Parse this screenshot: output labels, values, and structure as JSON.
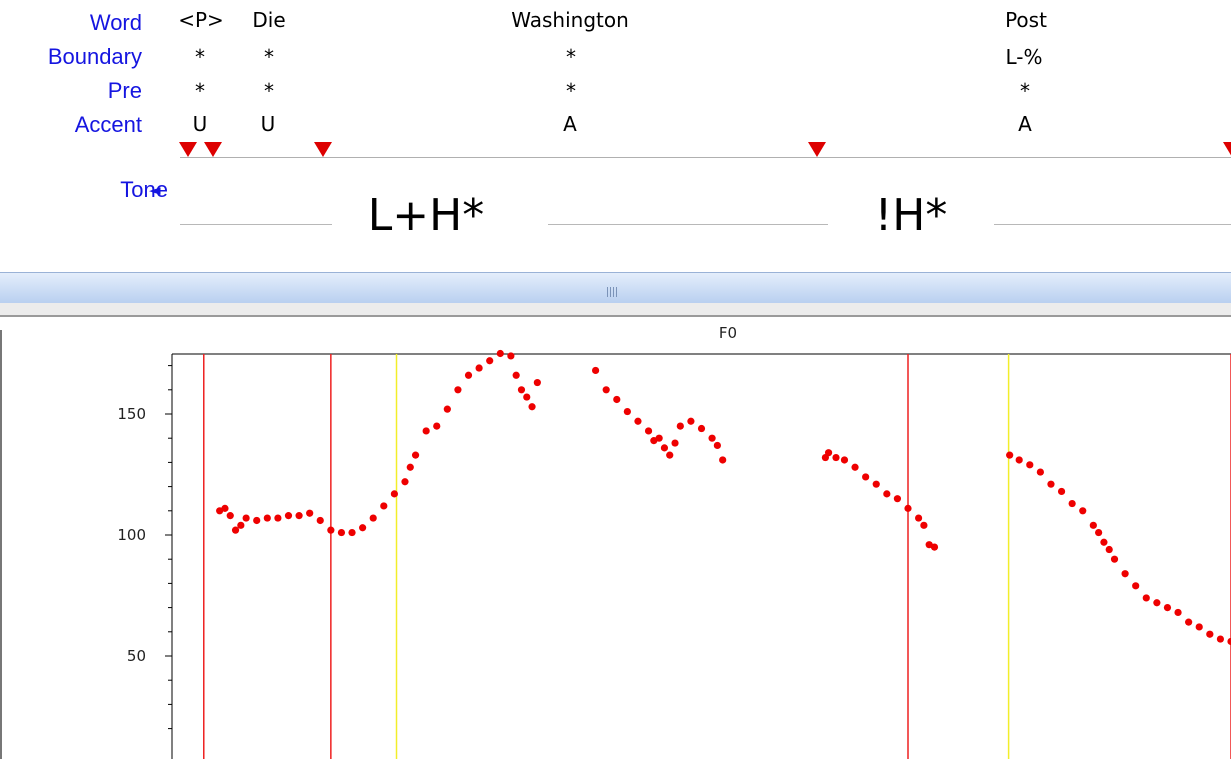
{
  "tiers": {
    "labels": {
      "word": "Word",
      "boundary": "Boundary",
      "pre": "Pre",
      "accent": "Accent",
      "tone": "Tone"
    },
    "tone_arrow": "◄",
    "word": [
      "<P>",
      "Die",
      "Washington",
      "Post"
    ],
    "boundary": [
      "*",
      "*",
      "*",
      "L-%"
    ],
    "pre": [
      "*",
      "*",
      "*",
      "*"
    ],
    "accent": [
      "U",
      "U",
      "A",
      "A"
    ],
    "tone": [
      "L+H*",
      "!H*"
    ]
  },
  "colors": {
    "tier_label": "#1515e0",
    "marker": "#dd0000",
    "boundary_line": "#ee2020",
    "accent_line": "#f2ee2a",
    "f0_point": "#ee0000"
  },
  "icons": {
    "splitter_grip": "grip-lines-icon",
    "tone_arrow": "triangle-left-icon",
    "marker": "triangle-down-icon"
  },
  "chart_data": {
    "type": "scatter",
    "title": "F0",
    "xlabel": "",
    "ylabel": "",
    "ylim": [
      10,
      175
    ],
    "yticks": [
      50,
      100,
      150
    ],
    "series": [
      {
        "values": [
          [
            0.045,
            110
          ],
          [
            0.05,
            111
          ],
          [
            0.055,
            108
          ],
          [
            0.06,
            102
          ],
          [
            0.065,
            104
          ],
          [
            0.07,
            107
          ],
          [
            0.08,
            106
          ],
          [
            0.09,
            107
          ],
          [
            0.1,
            107
          ],
          [
            0.11,
            108
          ],
          [
            0.12,
            108
          ],
          [
            0.13,
            109
          ],
          [
            0.14,
            106
          ],
          [
            0.15,
            102
          ],
          [
            0.16,
            101
          ],
          [
            0.17,
            101
          ],
          [
            0.18,
            103
          ],
          [
            0.19,
            107
          ],
          [
            0.2,
            112
          ],
          [
            0.21,
            117
          ],
          [
            0.22,
            122
          ],
          [
            0.225,
            128
          ],
          [
            0.23,
            133
          ],
          [
            0.24,
            143
          ],
          [
            0.25,
            145
          ],
          [
            0.26,
            152
          ],
          [
            0.27,
            160
          ],
          [
            0.28,
            166
          ],
          [
            0.29,
            169
          ],
          [
            0.3,
            172
          ],
          [
            0.31,
            175
          ],
          [
            0.32,
            174
          ],
          [
            0.325,
            166
          ],
          [
            0.33,
            160
          ],
          [
            0.335,
            157
          ],
          [
            0.34,
            153
          ],
          [
            0.345,
            163
          ],
          [
            0.4,
            168
          ],
          [
            0.41,
            160
          ],
          [
            0.42,
            156
          ],
          [
            0.43,
            151
          ],
          [
            0.44,
            147
          ],
          [
            0.45,
            143
          ],
          [
            0.455,
            139
          ],
          [
            0.46,
            140
          ],
          [
            0.465,
            136
          ],
          [
            0.47,
            133
          ],
          [
            0.475,
            138
          ],
          [
            0.48,
            145
          ],
          [
            0.49,
            147
          ],
          [
            0.5,
            144
          ],
          [
            0.51,
            140
          ],
          [
            0.515,
            137
          ],
          [
            0.52,
            131
          ],
          [
            0.617,
            132
          ],
          [
            0.62,
            134
          ],
          [
            0.627,
            132
          ],
          [
            0.635,
            131
          ],
          [
            0.645,
            128
          ],
          [
            0.655,
            124
          ],
          [
            0.665,
            121
          ],
          [
            0.675,
            117
          ],
          [
            0.685,
            115
          ],
          [
            0.695,
            111
          ],
          [
            0.705,
            107
          ],
          [
            0.71,
            104
          ],
          [
            0.715,
            96
          ],
          [
            0.72,
            95
          ],
          [
            0.791,
            133
          ],
          [
            0.8,
            131
          ],
          [
            0.81,
            129
          ],
          [
            0.82,
            126
          ],
          [
            0.83,
            121
          ],
          [
            0.84,
            118
          ],
          [
            0.85,
            113
          ],
          [
            0.86,
            110
          ],
          [
            0.87,
            104
          ],
          [
            0.875,
            101
          ],
          [
            0.88,
            97
          ],
          [
            0.885,
            94
          ],
          [
            0.89,
            90
          ],
          [
            0.9,
            84
          ],
          [
            0.91,
            79
          ],
          [
            0.92,
            74
          ],
          [
            0.93,
            72
          ],
          [
            0.94,
            70
          ],
          [
            0.95,
            68
          ],
          [
            0.96,
            64
          ],
          [
            0.97,
            62
          ],
          [
            0.98,
            59
          ],
          [
            0.99,
            57
          ],
          [
            1.0,
            56
          ]
        ]
      }
    ],
    "boundaries": [
      0.03,
      0.15,
      0.695,
      1.0
    ],
    "accents": [
      0.212,
      0.79
    ]
  }
}
